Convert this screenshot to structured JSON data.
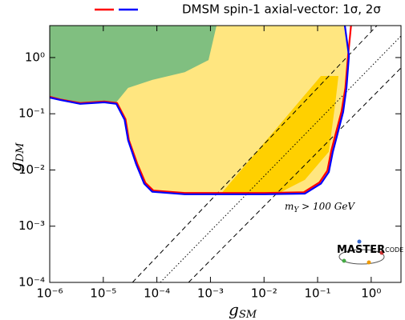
{
  "chart_data": {
    "type": "contour",
    "legend": "DMSM spin-1 axial-vector: 1σ, 2σ",
    "x_label": [
      "g",
      "SM"
    ],
    "y_label": [
      "g",
      "DM"
    ],
    "annotation": [
      "m",
      "Y",
      " > 100 GeV"
    ],
    "logo": [
      "MASTER",
      "CODE"
    ],
    "xscale": "log",
    "yscale": "log",
    "xlim": [
      1e-06,
      3.6
    ],
    "ylim": [
      0.0001,
      3.7
    ],
    "xticks": [
      {
        "value": 1e-06,
        "label": "10⁻⁶"
      },
      {
        "value": 1e-05,
        "label": "10⁻⁵"
      },
      {
        "value": 0.0001,
        "label": "10⁻⁴"
      },
      {
        "value": 0.001,
        "label": "10⁻³"
      },
      {
        "value": 0.01,
        "label": "10⁻²"
      },
      {
        "value": 0.1,
        "label": "10⁻¹"
      },
      {
        "value": 1,
        "label": "10⁰"
      }
    ],
    "yticks": [
      {
        "value": 0.0001,
        "label": "10⁻⁴"
      },
      {
        "value": 0.001,
        "label": "10⁻³"
      },
      {
        "value": 0.01,
        "label": "10⁻²"
      },
      {
        "value": 0.1,
        "label": "10⁻¹"
      },
      {
        "value": 1,
        "label": "10⁰"
      }
    ],
    "regions": [
      {
        "color": "#ffe680",
        "x": [
          1e-06,
          1.57e-06,
          3.7e-06,
          1.04e-05,
          1.75e-05,
          2.5e-05,
          2.9e-05,
          4.1e-05,
          5.8e-05,
          8.2e-05,
          0.00033,
          0.0013,
          0.0103,
          0.058,
          0.115,
          0.162,
          0.192,
          0.229,
          0.3,
          0.346,
          0.384,
          0.323,
          1e-06
        ],
        "y": [
          0.194,
          0.176,
          0.15,
          0.16,
          0.15,
          0.078,
          0.034,
          0.0128,
          0.0057,
          0.0041,
          0.0037,
          0.0037,
          0.0037,
          0.0038,
          0.0057,
          0.0092,
          0.021,
          0.04,
          0.108,
          0.288,
          1.07,
          3.7,
          3.7
        ]
      },
      {
        "color": "#80bf80",
        "x": [
          1e-06,
          3.7e-06,
          1.75e-05,
          2.9e-05,
          8.2e-05,
          0.00033,
          0.00092,
          0.0013,
          1e-06
        ],
        "y": [
          0.194,
          0.16,
          0.16,
          0.288,
          0.4,
          0.55,
          0.9,
          3.7,
          3.7
        ]
      },
      {
        "color": "#ffd000",
        "x": [
          0.00155,
          0.0173,
          0.058,
          0.162,
          0.213,
          0.245,
          0.115
        ],
        "y": [
          0.0037,
          0.0037,
          0.0067,
          0.021,
          0.15,
          0.47,
          0.47
        ]
      }
    ],
    "lines": [
      {
        "style": "dashed",
        "x": [
          3.5e-05,
          1.28
        ],
        "y": [
          0.0001,
          3.7
        ]
      },
      {
        "style": "dotted",
        "x": [
          0.000116,
          3.6
        ],
        "y": [
          0.0001,
          2.42
        ]
      },
      {
        "style": "dashed",
        "x": [
          0.00039,
          3.6
        ],
        "y": [
          0.0001,
          0.653
        ]
      }
    ],
    "series": [
      {
        "color": "#ff0000",
        "x": [
          1e-06,
          1.57e-06,
          3.7e-06,
          1.04e-05,
          1.8e-05,
          2.6e-05,
          3e-05,
          4.3e-05,
          6.1e-05,
          8.6e-05,
          0.00033,
          0.0013,
          0.0103,
          0.055,
          0.108,
          0.152,
          0.18,
          0.215,
          0.28,
          0.33,
          0.37,
          0.42
        ],
        "y": [
          0.2,
          0.18,
          0.155,
          0.165,
          0.155,
          0.08,
          0.034,
          0.013,
          0.0059,
          0.0043,
          0.0039,
          0.0039,
          0.0039,
          0.004,
          0.006,
          0.0097,
          0.022,
          0.042,
          0.11,
          0.29,
          1.07,
          3.7
        ]
      },
      {
        "color": "#0000ff",
        "x": [
          1e-06,
          1.57e-06,
          3.7e-06,
          1.04e-05,
          1.75e-05,
          2.5e-05,
          2.9e-05,
          4.1e-05,
          5.8e-05,
          8.2e-05,
          0.00033,
          0.0013,
          0.0103,
          0.058,
          0.115,
          0.162,
          0.192,
          0.229,
          0.3,
          0.346,
          0.384,
          0.323
        ],
        "y": [
          0.194,
          0.176,
          0.15,
          0.16,
          0.15,
          0.078,
          0.034,
          0.0128,
          0.0057,
          0.0041,
          0.0037,
          0.0037,
          0.0037,
          0.0038,
          0.0057,
          0.0092,
          0.021,
          0.04,
          0.108,
          0.288,
          1.07,
          3.7
        ]
      }
    ]
  }
}
